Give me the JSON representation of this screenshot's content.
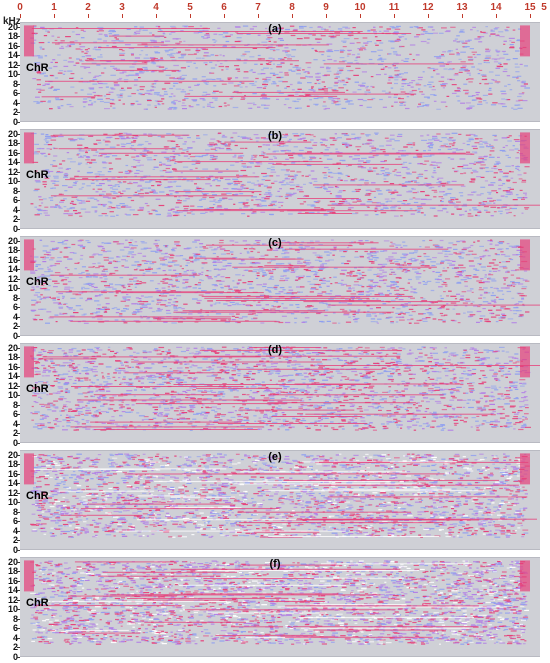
{
  "chart_data": {
    "type": "heatmap",
    "y_unit_label": "kHz",
    "x_range": [
      0,
      15
    ],
    "x_ticks": [
      "0",
      "1",
      "2",
      "3",
      "4",
      "5",
      "6",
      "7",
      "8",
      "9",
      "10",
      "11",
      "12",
      "13",
      "14",
      "15"
    ],
    "x_end_label": "5",
    "y_range": [
      0,
      21
    ],
    "y_ticks": [
      "0",
      "2",
      "4",
      "6",
      "8",
      "10",
      "12",
      "14",
      "16",
      "18",
      "20"
    ],
    "chr_label": "ChR",
    "chr_level_khz": 10,
    "panels": [
      {
        "label": "(a)",
        "density": 0.2,
        "signal_intensity": 0.35
      },
      {
        "label": "(b)",
        "density": 0.3,
        "signal_intensity": 0.45
      },
      {
        "label": "(c)",
        "density": 0.35,
        "signal_intensity": 0.5
      },
      {
        "label": "(d)",
        "density": 0.5,
        "signal_intensity": 0.65
      },
      {
        "label": "(e)",
        "density": 0.72,
        "signal_intensity": 0.85
      },
      {
        "label": "(f)",
        "density": 0.9,
        "signal_intensity": 1.0
      }
    ],
    "colors": {
      "background": "#cfd0d6",
      "low": "#8f9ff0",
      "mid": "#b27fe6",
      "high": "#e6407a",
      "saturated": "#ffffff"
    }
  }
}
